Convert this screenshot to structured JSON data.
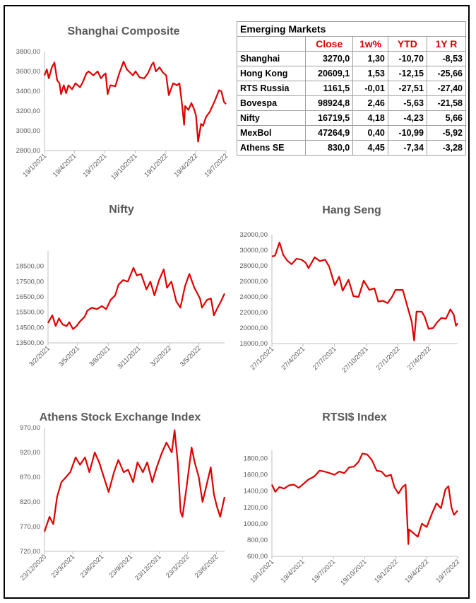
{
  "table": {
    "title": "Emerging Markets",
    "columns": [
      "Close",
      "1w%",
      "YTD",
      "1Y R"
    ],
    "rows": [
      {
        "name": "Shanghai",
        "close": "3270,0",
        "w": "1,30",
        "ytd": "-10,70",
        "y1": "-8,53"
      },
      {
        "name": "Hong Kong",
        "close": "20609,1",
        "w": "1,53",
        "ytd": "-12,15",
        "y1": "-25,66"
      },
      {
        "name": "RTS Russia",
        "close": "1161,5",
        "w": "-0,01",
        "ytd": "-27,51",
        "y1": "-27,40"
      },
      {
        "name": "Bovespa",
        "close": "98924,8",
        "w": "2,46",
        "ytd": "-5,63",
        "y1": "-21,58"
      },
      {
        "name": "Nifty",
        "close": "16719,5",
        "w": "4,18",
        "ytd": "-4,23",
        "y1": "5,66"
      },
      {
        "name": "MexBol",
        "close": "47264,9",
        "w": "0,40",
        "ytd": "-10,99",
        "y1": "-5,92"
      },
      {
        "name": "Athens SE",
        "close": "830,0",
        "w": "4,45",
        "ytd": "-7,34",
        "y1": "-3,28"
      }
    ]
  },
  "colors": {
    "series": "#e00000",
    "header": "#e00000",
    "text": "#595959"
  },
  "chart_data": [
    {
      "type": "line",
      "title": "Shanghai Composite",
      "ylim": [
        2800,
        3800
      ],
      "yticks": [
        "2800,00",
        "3000,00",
        "3200,00",
        "3400,00",
        "3600,00",
        "3800,00"
      ],
      "xlim": [
        "2021-01-19",
        "2022-07-19"
      ],
      "xticks": [
        "19/1/2021",
        "19/4/2021",
        "19/7/2021",
        "19/10/2021",
        "19/1/2022",
        "19/4/2022",
        "19/7/2022"
      ],
      "points": [
        [
          "2021-01-19",
          3560
        ],
        [
          "2021-01-26",
          3620
        ],
        [
          "2021-02-01",
          3530
        ],
        [
          "2021-02-10",
          3640
        ],
        [
          "2021-02-18",
          3690
        ],
        [
          "2021-02-26",
          3510
        ],
        [
          "2021-03-05",
          3480
        ],
        [
          "2021-03-10",
          3370
        ],
        [
          "2021-03-18",
          3460
        ],
        [
          "2021-03-25",
          3380
        ],
        [
          "2021-04-01",
          3460
        ],
        [
          "2021-04-12",
          3420
        ],
        [
          "2021-04-22",
          3480
        ],
        [
          "2021-05-06",
          3440
        ],
        [
          "2021-05-14",
          3490
        ],
        [
          "2021-05-25",
          3580
        ],
        [
          "2021-06-01",
          3600
        ],
        [
          "2021-06-15",
          3560
        ],
        [
          "2021-06-28",
          3600
        ],
        [
          "2021-07-08",
          3530
        ],
        [
          "2021-07-15",
          3560
        ],
        [
          "2021-07-22",
          3580
        ],
        [
          "2021-07-28",
          3370
        ],
        [
          "2021-08-05",
          3460
        ],
        [
          "2021-08-20",
          3450
        ],
        [
          "2021-09-01",
          3580
        ],
        [
          "2021-09-14",
          3700
        ],
        [
          "2021-09-24",
          3620
        ],
        [
          "2021-10-12",
          3560
        ],
        [
          "2021-10-20",
          3600
        ],
        [
          "2021-11-01",
          3540
        ],
        [
          "2021-11-15",
          3530
        ],
        [
          "2021-11-26",
          3580
        ],
        [
          "2021-12-08",
          3670
        ],
        [
          "2021-12-13",
          3690
        ],
        [
          "2021-12-20",
          3600
        ],
        [
          "2021-12-31",
          3640
        ],
        [
          "2022-01-10",
          3590
        ],
        [
          "2022-01-20",
          3560
        ],
        [
          "2022-01-28",
          3360
        ],
        [
          "2022-02-10",
          3480
        ],
        [
          "2022-02-22",
          3460
        ],
        [
          "2022-03-01",
          3480
        ],
        [
          "2022-03-09",
          3260
        ],
        [
          "2022-03-15",
          3060
        ],
        [
          "2022-03-18",
          3250
        ],
        [
          "2022-03-28",
          3210
        ],
        [
          "2022-04-06",
          3280
        ],
        [
          "2022-04-15",
          3210
        ],
        [
          "2022-04-20",
          3150
        ],
        [
          "2022-04-26",
          2890
        ],
        [
          "2022-05-05",
          3070
        ],
        [
          "2022-05-11",
          3050
        ],
        [
          "2022-05-20",
          3140
        ],
        [
          "2022-05-31",
          3190
        ],
        [
          "2022-06-15",
          3300
        ],
        [
          "2022-06-28",
          3410
        ],
        [
          "2022-07-05",
          3400
        ],
        [
          "2022-07-13",
          3290
        ],
        [
          "2022-07-19",
          3270
        ]
      ]
    },
    {
      "type": "line",
      "title": "Nifty",
      "ylim": [
        13500,
        19500
      ],
      "yticks": [
        "13500,00",
        "14500,00",
        "15500,00",
        "16500,00",
        "17500,00",
        "18500,00"
      ],
      "xlim": [
        "2021-02-03",
        "2022-07-19"
      ],
      "xticks": [
        "3/2/2021",
        "3/5/2021",
        "3/8/2021",
        "3/11/2021",
        "3/2/2022",
        "3/5/2022"
      ],
      "points": [
        [
          "2021-02-03",
          14800
        ],
        [
          "2021-02-16",
          15300
        ],
        [
          "2021-02-26",
          14600
        ],
        [
          "2021-03-08",
          15100
        ],
        [
          "2021-03-19",
          14700
        ],
        [
          "2021-03-31",
          14600
        ],
        [
          "2021-04-08",
          14850
        ],
        [
          "2021-04-19",
          14400
        ],
        [
          "2021-04-30",
          14600
        ],
        [
          "2021-05-10",
          14900
        ],
        [
          "2021-05-24",
          15200
        ],
        [
          "2021-06-01",
          15600
        ],
        [
          "2021-06-15",
          15800
        ],
        [
          "2021-06-30",
          15700
        ],
        [
          "2021-07-15",
          15900
        ],
        [
          "2021-07-28",
          15700
        ],
        [
          "2021-08-10",
          16300
        ],
        [
          "2021-08-24",
          16600
        ],
        [
          "2021-09-03",
          17300
        ],
        [
          "2021-09-17",
          17600
        ],
        [
          "2021-10-01",
          17500
        ],
        [
          "2021-10-18",
          18400
        ],
        [
          "2021-10-28",
          17900
        ],
        [
          "2021-11-10",
          18000
        ],
        [
          "2021-11-26",
          17000
        ],
        [
          "2021-12-08",
          17500
        ],
        [
          "2021-12-20",
          16600
        ],
        [
          "2022-01-03",
          17600
        ],
        [
          "2022-01-17",
          18300
        ],
        [
          "2022-01-27",
          17100
        ],
        [
          "2022-02-09",
          17500
        ],
        [
          "2022-02-24",
          16200
        ],
        [
          "2022-03-08",
          15800
        ],
        [
          "2022-03-22",
          17200
        ],
        [
          "2022-04-04",
          18000
        ],
        [
          "2022-04-19",
          17100
        ],
        [
          "2022-05-06",
          16400
        ],
        [
          "2022-05-12",
          15800
        ],
        [
          "2022-05-27",
          16300
        ],
        [
          "2022-06-08",
          16400
        ],
        [
          "2022-06-17",
          15300
        ],
        [
          "2022-06-28",
          15800
        ],
        [
          "2022-07-08",
          16200
        ],
        [
          "2022-07-19",
          16720
        ]
      ]
    },
    {
      "type": "line",
      "title": "Hang Seng",
      "ylim": [
        18000,
        32000
      ],
      "yticks": [
        "18000,00",
        "20000,00",
        "22000,00",
        "24000,00",
        "26000,00",
        "28000,00",
        "30000,00",
        "32000,00"
      ],
      "xlim": [
        "2021-01-27",
        "2022-07-19"
      ],
      "xticks": [
        "27/1/2021",
        "27/4/2021",
        "27/7/2021",
        "27/10/2021",
        "27/1/2022",
        "27/4/2022"
      ],
      "points": [
        [
          "2021-01-27",
          29200
        ],
        [
          "2021-02-05",
          29300
        ],
        [
          "2021-02-18",
          31000
        ],
        [
          "2021-03-01",
          29400
        ],
        [
          "2021-03-12",
          28700
        ],
        [
          "2021-03-25",
          28200
        ],
        [
          "2021-04-08",
          28900
        ],
        [
          "2021-04-22",
          28800
        ],
        [
          "2021-05-05",
          28400
        ],
        [
          "2021-05-13",
          27700
        ],
        [
          "2021-05-31",
          29100
        ],
        [
          "2021-06-15",
          28600
        ],
        [
          "2021-06-30",
          28800
        ],
        [
          "2021-07-12",
          27900
        ],
        [
          "2021-07-28",
          25500
        ],
        [
          "2021-08-10",
          26600
        ],
        [
          "2021-08-20",
          24800
        ],
        [
          "2021-09-06",
          26200
        ],
        [
          "2021-09-20",
          24100
        ],
        [
          "2021-10-05",
          24000
        ],
        [
          "2021-10-20",
          26100
        ],
        [
          "2021-11-05",
          24900
        ],
        [
          "2021-11-20",
          25100
        ],
        [
          "2021-12-01",
          23400
        ],
        [
          "2021-12-15",
          23500
        ],
        [
          "2021-12-28",
          23200
        ],
        [
          "2022-01-10",
          24000
        ],
        [
          "2022-01-20",
          24900
        ],
        [
          "2022-02-10",
          24900
        ],
        [
          "2022-02-24",
          22700
        ],
        [
          "2022-03-08",
          20800
        ],
        [
          "2022-03-15",
          18400
        ],
        [
          "2022-03-22",
          22100
        ],
        [
          "2022-04-06",
          22100
        ],
        [
          "2022-04-14",
          21500
        ],
        [
          "2022-04-26",
          19900
        ],
        [
          "2022-05-09",
          20000
        ],
        [
          "2022-05-20",
          20700
        ],
        [
          "2022-06-02",
          21300
        ],
        [
          "2022-06-15",
          21200
        ],
        [
          "2022-06-28",
          22400
        ],
        [
          "2022-07-08",
          21700
        ],
        [
          "2022-07-14",
          20300
        ],
        [
          "2022-07-19",
          20610
        ]
      ]
    },
    {
      "type": "line",
      "title": "Athens Stock Exchange Index",
      "ylim": [
        720,
        970
      ],
      "yticks": [
        "720,00",
        "770,00",
        "820,00",
        "870,00",
        "920,00",
        "970,00"
      ],
      "xlim": [
        "2020-12-23",
        "2022-07-19"
      ],
      "xticks": [
        "23/12/2020",
        "23/3/2021",
        "23/6/2021",
        "23/9/2021",
        "23/12/2021",
        "23/3/2022",
        "23/6/2022"
      ],
      "points": [
        [
          "2020-12-23",
          760
        ],
        [
          "2021-01-08",
          790
        ],
        [
          "2021-01-20",
          775
        ],
        [
          "2021-02-01",
          830
        ],
        [
          "2021-02-15",
          860
        ],
        [
          "2021-03-01",
          870
        ],
        [
          "2021-03-15",
          880
        ],
        [
          "2021-04-01",
          910
        ],
        [
          "2021-04-15",
          895
        ],
        [
          "2021-05-01",
          910
        ],
        [
          "2021-05-15",
          880
        ],
        [
          "2021-06-01",
          920
        ],
        [
          "2021-06-15",
          900
        ],
        [
          "2021-06-30",
          870
        ],
        [
          "2021-07-15",
          840
        ],
        [
          "2021-08-01",
          880
        ],
        [
          "2021-08-15",
          905
        ],
        [
          "2021-09-01",
          880
        ],
        [
          "2021-09-15",
          885
        ],
        [
          "2021-10-01",
          860
        ],
        [
          "2021-10-15",
          900
        ],
        [
          "2021-11-01",
          880
        ],
        [
          "2021-11-15",
          900
        ],
        [
          "2021-12-01",
          860
        ],
        [
          "2021-12-15",
          890
        ],
        [
          "2022-01-01",
          920
        ],
        [
          "2022-01-15",
          940
        ],
        [
          "2022-02-01",
          920
        ],
        [
          "2022-02-10",
          965
        ],
        [
          "2022-02-20",
          900
        ],
        [
          "2022-03-01",
          800
        ],
        [
          "2022-03-07",
          790
        ],
        [
          "2022-03-20",
          850
        ],
        [
          "2022-04-05",
          930
        ],
        [
          "2022-04-15",
          900
        ],
        [
          "2022-04-28",
          870
        ],
        [
          "2022-05-10",
          820
        ],
        [
          "2022-05-25",
          860
        ],
        [
          "2022-06-05",
          890
        ],
        [
          "2022-06-15",
          835
        ],
        [
          "2022-06-25",
          810
        ],
        [
          "2022-07-05",
          790
        ],
        [
          "2022-07-12",
          810
        ],
        [
          "2022-07-19",
          830
        ]
      ]
    },
    {
      "type": "line",
      "title": "RTSI$ Index",
      "ylim": [
        600,
        1900
      ],
      "yticks": [
        "600,00",
        "800,00",
        "1000,00",
        "1200,00",
        "1400,00",
        "1600,00",
        "1800,00"
      ],
      "xlim": [
        "2021-01-19",
        "2022-07-19"
      ],
      "xticks": [
        "19/1/2021",
        "19/4/2021",
        "19/7/2021",
        "19/10/2021",
        "19/1/2022",
        "19/4/2022",
        "19/7/2022"
      ],
      "points": [
        [
          "2021-01-19",
          1480
        ],
        [
          "2021-01-29",
          1390
        ],
        [
          "2021-02-10",
          1450
        ],
        [
          "2021-02-24",
          1430
        ],
        [
          "2021-03-10",
          1470
        ],
        [
          "2021-03-25",
          1480
        ],
        [
          "2021-04-08",
          1440
        ],
        [
          "2021-04-22",
          1490
        ],
        [
          "2021-05-06",
          1540
        ],
        [
          "2021-05-24",
          1580
        ],
        [
          "2021-06-08",
          1650
        ],
        [
          "2021-06-22",
          1640
        ],
        [
          "2021-07-08",
          1620
        ],
        [
          "2021-07-22",
          1600
        ],
        [
          "2021-08-05",
          1640
        ],
        [
          "2021-08-20",
          1620
        ],
        [
          "2021-09-03",
          1690
        ],
        [
          "2021-09-17",
          1700
        ],
        [
          "2021-10-01",
          1760
        ],
        [
          "2021-10-12",
          1860
        ],
        [
          "2021-10-26",
          1850
        ],
        [
          "2021-11-09",
          1780
        ],
        [
          "2021-11-23",
          1650
        ],
        [
          "2021-12-07",
          1640
        ],
        [
          "2021-12-20",
          1580
        ],
        [
          "2022-01-04",
          1600
        ],
        [
          "2022-01-14",
          1450
        ],
        [
          "2022-01-26",
          1370
        ],
        [
          "2022-02-07",
          1450
        ],
        [
          "2022-02-16",
          1480
        ],
        [
          "2022-02-24",
          750
        ],
        [
          "2022-02-26",
          930
        ],
        [
          "2022-03-24",
          840
        ],
        [
          "2022-04-05",
          1000
        ],
        [
          "2022-04-19",
          960
        ],
        [
          "2022-05-05",
          1130
        ],
        [
          "2022-05-18",
          1250
        ],
        [
          "2022-05-31",
          1190
        ],
        [
          "2022-06-13",
          1420
        ],
        [
          "2022-06-22",
          1460
        ],
        [
          "2022-07-01",
          1200
        ],
        [
          "2022-07-08",
          1110
        ],
        [
          "2022-07-19",
          1160
        ]
      ]
    }
  ]
}
